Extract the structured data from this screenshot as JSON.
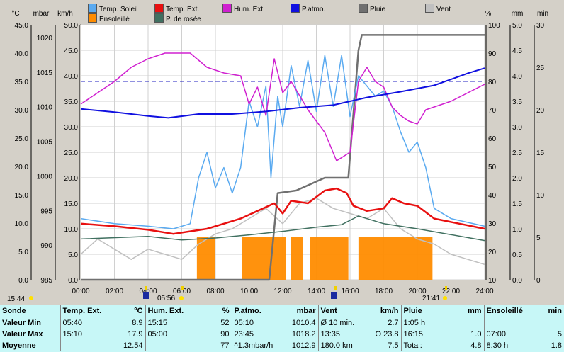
{
  "legend": [
    {
      "label": "Temp. Soleil",
      "color": "#5aaaf0"
    },
    {
      "label": "Temp. Ext.",
      "color": "#e81010"
    },
    {
      "label": "Hum. Ext.",
      "color": "#d020d0"
    },
    {
      "label": "P.atmo.",
      "color": "#1010e0"
    },
    {
      "label": "Pluie",
      "color": "#707070"
    },
    {
      "label": "Vent",
      "color": "#c0c0c0"
    },
    {
      "label": "Ensoleillé",
      "color": "#ff8c00"
    },
    {
      "label": "P. de rosée",
      "color": "#407060"
    }
  ],
  "units": {
    "temp": "°C",
    "press": "mbar",
    "wind": "km/h",
    "hum": "%",
    "rain": "mm",
    "sun": "min"
  },
  "axes": {
    "temp": [
      "45.0",
      "40.0",
      "35.0",
      "30.0",
      "25.0",
      "20.0",
      "15.0",
      "10.0",
      "5.0",
      "0.0"
    ],
    "press": [
      "1020",
      "1015",
      "1010",
      "1005",
      "1000",
      "995",
      "990",
      "985"
    ],
    "wind": [
      "50.0",
      "45.0",
      "40.0",
      "35.0",
      "30.0",
      "25.0",
      "20.0",
      "15.0",
      "10.0",
      "5.0",
      "0.0"
    ],
    "hum": [
      "100",
      "90",
      "80",
      "70",
      "60",
      "50",
      "40",
      "30",
      "20",
      "10"
    ],
    "rain": [
      "5.0",
      "4.5",
      "4.0",
      "3.5",
      "3.0",
      "2.5",
      "2.0",
      "1.5",
      "1.0",
      "0.5",
      "0.0"
    ],
    "sun": [
      "30",
      "25",
      "20",
      "15",
      "10",
      "5",
      "0"
    ],
    "time": [
      "00:00",
      "02:00",
      "04:00",
      "06:00",
      "08:00",
      "10:00",
      "12:00",
      "14:00",
      "16:00",
      "18:00",
      "20:00",
      "22:00",
      "24:00"
    ]
  },
  "events": {
    "start": "15:44",
    "sunrise": "05:56",
    "sunset": "21:41"
  },
  "stats": {
    "headers": [
      "Sonde",
      "Temp. Ext.",
      "°C",
      "Hum. Ext.",
      "%",
      "P.atmo.",
      "mbar",
      "Vent",
      "km/h",
      "Pluie",
      "mm",
      "Ensoleillé",
      "min"
    ],
    "rows": [
      [
        "Valeur Min",
        "05:40",
        "8.9",
        "15:15",
        "52",
        "05:10",
        "1010.4",
        "Ø 10 min.",
        "2.7",
        "1:05 h",
        "",
        "",
        ""
      ],
      [
        "Valeur Max",
        "15:10",
        "17.9",
        "05:00",
        "90",
        "23:45",
        "1018.2",
        "13:35",
        "O 23.8",
        "16:15",
        "1.0",
        "07:00",
        "5"
      ],
      [
        "Moyenne",
        "",
        "12.54",
        "",
        "77",
        "^1.3mbar/h",
        "1012.9",
        "180.0 km",
        "7.5",
        "Total:",
        "4.8",
        "8:30 h",
        "1.8"
      ]
    ]
  },
  "chart_data": {
    "type": "line",
    "xlabel": "",
    "x_range": [
      "00:00",
      "24:00"
    ],
    "series": [
      {
        "name": "Temp. Soleil",
        "axis": "°C",
        "points": [
          [
            0,
            12
          ],
          [
            2,
            11
          ],
          [
            4,
            10.5
          ],
          [
            5.5,
            10
          ],
          [
            6.5,
            11
          ],
          [
            7,
            20
          ],
          [
            7.5,
            25
          ],
          [
            8,
            18
          ],
          [
            8.5,
            22
          ],
          [
            9,
            17
          ],
          [
            9.5,
            22
          ],
          [
            10,
            35
          ],
          [
            10.5,
            30
          ],
          [
            11,
            38
          ],
          [
            11.3,
            20
          ],
          [
            11.7,
            36
          ],
          [
            12,
            30
          ],
          [
            12.5,
            42
          ],
          [
            13,
            34
          ],
          [
            13.5,
            43
          ],
          [
            14,
            33
          ],
          [
            14.5,
            44
          ],
          [
            15,
            34
          ],
          [
            15.5,
            44
          ],
          [
            16,
            32
          ],
          [
            16.5,
            40
          ],
          [
            17,
            38
          ],
          [
            17.5,
            36
          ],
          [
            18,
            37
          ],
          [
            18.5,
            34
          ],
          [
            19,
            29
          ],
          [
            19.5,
            25
          ],
          [
            20,
            27
          ],
          [
            20.5,
            22
          ],
          [
            21,
            14
          ],
          [
            22,
            12
          ],
          [
            24,
            10.5
          ]
        ]
      },
      {
        "name": "Temp. Ext.",
        "axis": "°C",
        "points": [
          [
            0,
            11
          ],
          [
            2,
            10.5
          ],
          [
            4,
            9.8
          ],
          [
            5.5,
            9
          ],
          [
            6.5,
            9.5
          ],
          [
            7.5,
            10
          ],
          [
            8.5,
            11
          ],
          [
            9.5,
            12
          ],
          [
            10.5,
            13.5
          ],
          [
            11.5,
            15
          ],
          [
            12,
            13
          ],
          [
            12.5,
            15.5
          ],
          [
            13.5,
            15
          ],
          [
            14.5,
            17.5
          ],
          [
            15.2,
            17.9
          ],
          [
            15.8,
            17
          ],
          [
            16.2,
            14.5
          ],
          [
            17,
            13.5
          ],
          [
            18,
            14
          ],
          [
            18.5,
            16
          ],
          [
            19.2,
            15
          ],
          [
            20,
            14.5
          ],
          [
            21,
            12
          ],
          [
            22.5,
            11
          ],
          [
            24,
            10
          ]
        ]
      },
      {
        "name": "Hum. Ext.",
        "axis": "%",
        "points": [
          [
            0,
            72
          ],
          [
            1,
            76
          ],
          [
            2,
            80
          ],
          [
            3,
            85
          ],
          [
            4,
            88
          ],
          [
            5,
            90
          ],
          [
            6.5,
            90
          ],
          [
            7.5,
            85
          ],
          [
            8.5,
            83
          ],
          [
            9.5,
            82
          ],
          [
            10,
            72
          ],
          [
            10.5,
            78
          ],
          [
            11,
            68
          ],
          [
            11.5,
            88
          ],
          [
            12,
            76
          ],
          [
            12.5,
            80
          ],
          [
            13,
            75
          ],
          [
            13.5,
            70
          ],
          [
            14,
            66
          ],
          [
            14.5,
            62
          ],
          [
            15.2,
            52
          ],
          [
            16,
            55
          ],
          [
            16.5,
            80
          ],
          [
            17,
            85
          ],
          [
            17.5,
            80
          ],
          [
            18,
            78
          ],
          [
            18.5,
            71
          ],
          [
            19,
            68
          ],
          [
            19.5,
            66
          ],
          [
            20,
            65
          ],
          [
            20.5,
            70
          ],
          [
            21,
            71
          ],
          [
            22,
            73
          ],
          [
            23,
            76
          ],
          [
            24,
            79
          ]
        ]
      },
      {
        "name": "P.atmo.",
        "axis": "mbar",
        "points": [
          [
            0,
            1011.8
          ],
          [
            2,
            1011.3
          ],
          [
            4,
            1010.7
          ],
          [
            5.2,
            1010.4
          ],
          [
            7,
            1011.0
          ],
          [
            9,
            1011.0
          ],
          [
            11,
            1011.4
          ],
          [
            13,
            1012.0
          ],
          [
            15,
            1012.4
          ],
          [
            17,
            1013.6
          ],
          [
            19,
            1014.5
          ],
          [
            21,
            1015.5
          ],
          [
            23,
            1017.4
          ],
          [
            24,
            1018.2
          ]
        ]
      },
      {
        "name": "Pluie",
        "axis": "mm",
        "points": [
          [
            0,
            0
          ],
          [
            11.2,
            0
          ],
          [
            11.7,
            1.7
          ],
          [
            12.8,
            1.75
          ],
          [
            14.5,
            2.0
          ],
          [
            15.9,
            2.0
          ],
          [
            16.5,
            4.5
          ],
          [
            16.7,
            4.8
          ],
          [
            24,
            4.8
          ]
        ]
      },
      {
        "name": "Vent",
        "axis": "km/h",
        "points": [
          [
            0,
            5
          ],
          [
            1,
            8
          ],
          [
            2,
            6
          ],
          [
            3,
            4
          ],
          [
            4,
            6
          ],
          [
            5,
            5
          ],
          [
            6,
            4
          ],
          [
            7,
            7
          ],
          [
            8,
            9
          ],
          [
            9,
            10
          ],
          [
            10,
            12
          ],
          [
            11,
            14
          ],
          [
            12,
            11
          ],
          [
            13,
            15
          ],
          [
            14,
            16
          ],
          [
            15,
            14
          ],
          [
            16,
            13
          ],
          [
            17,
            12
          ],
          [
            18,
            14
          ],
          [
            19,
            10
          ],
          [
            20,
            8
          ],
          [
            21,
            7
          ],
          [
            22,
            5
          ],
          [
            23,
            4
          ],
          [
            24,
            3
          ]
        ]
      },
      {
        "name": "P. de rosée",
        "axis": "°C",
        "points": [
          [
            0,
            8
          ],
          [
            4,
            8.5
          ],
          [
            6,
            7.8
          ],
          [
            8,
            8.2
          ],
          [
            10,
            8.8
          ],
          [
            12,
            9.5
          ],
          [
            14,
            10.3
          ],
          [
            15.5,
            10.8
          ],
          [
            16.5,
            12.5
          ],
          [
            18,
            11
          ],
          [
            20,
            10
          ],
          [
            24,
            7.7
          ]
        ]
      }
    ],
    "sunshine": {
      "name": "Ensoleillé",
      "axis": "min",
      "blocks": [
        [
          6.9,
          8.0
        ],
        [
          9.6,
          12.2
        ],
        [
          12.5,
          13.2
        ],
        [
          13.6,
          15.9
        ],
        [
          16.5,
          20.9
        ]
      ]
    }
  }
}
